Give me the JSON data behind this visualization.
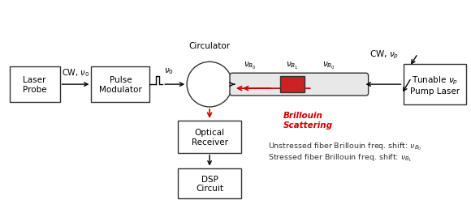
{
  "bg_color": "#ffffff",
  "box_color": "#ffffff",
  "box_edge": "#333333",
  "box_text_color": "#000000",
  "red_arrow_color": "#cc0000",
  "fiber_fill": "#e8e8e8",
  "fiber_edge": "#333333",
  "red_section_fill": "#cc2222",
  "red_section_edge": "#333333",
  "circulator_color": "#ffffff",
  "circulator_edge": "#333333",
  "circulator_label": "Circulator",
  "brillouin_label": "Brillouin\nScattering",
  "cw_v0_label": "CW, $\\nu_0$",
  "pulse_v0_label": "$\\nu_0$",
  "cw_vp_label": "CW, $\\nu_p$",
  "vB0_left_label": "$\\nu_{B_0}$",
  "vB1_label": "$\\nu_{B_1}$",
  "vB0_right_label": "$\\nu_{B_0}$",
  "note_line1": "Unstressed fiber Brillouin freq. shift: $\\nu_{B_0}$",
  "note_line2": "Stressed fiber Brillouin freq. shift: $\\nu_{B_1}$",
  "laser_label": "Laser\nProbe",
  "pulse_label": "Pulse\nModulator",
  "optical_label": "Optical\nReceiver",
  "dsp_label": "DSP\nCircuit",
  "pump_label": "Tunable $\\nu_p$\nPump Laser"
}
